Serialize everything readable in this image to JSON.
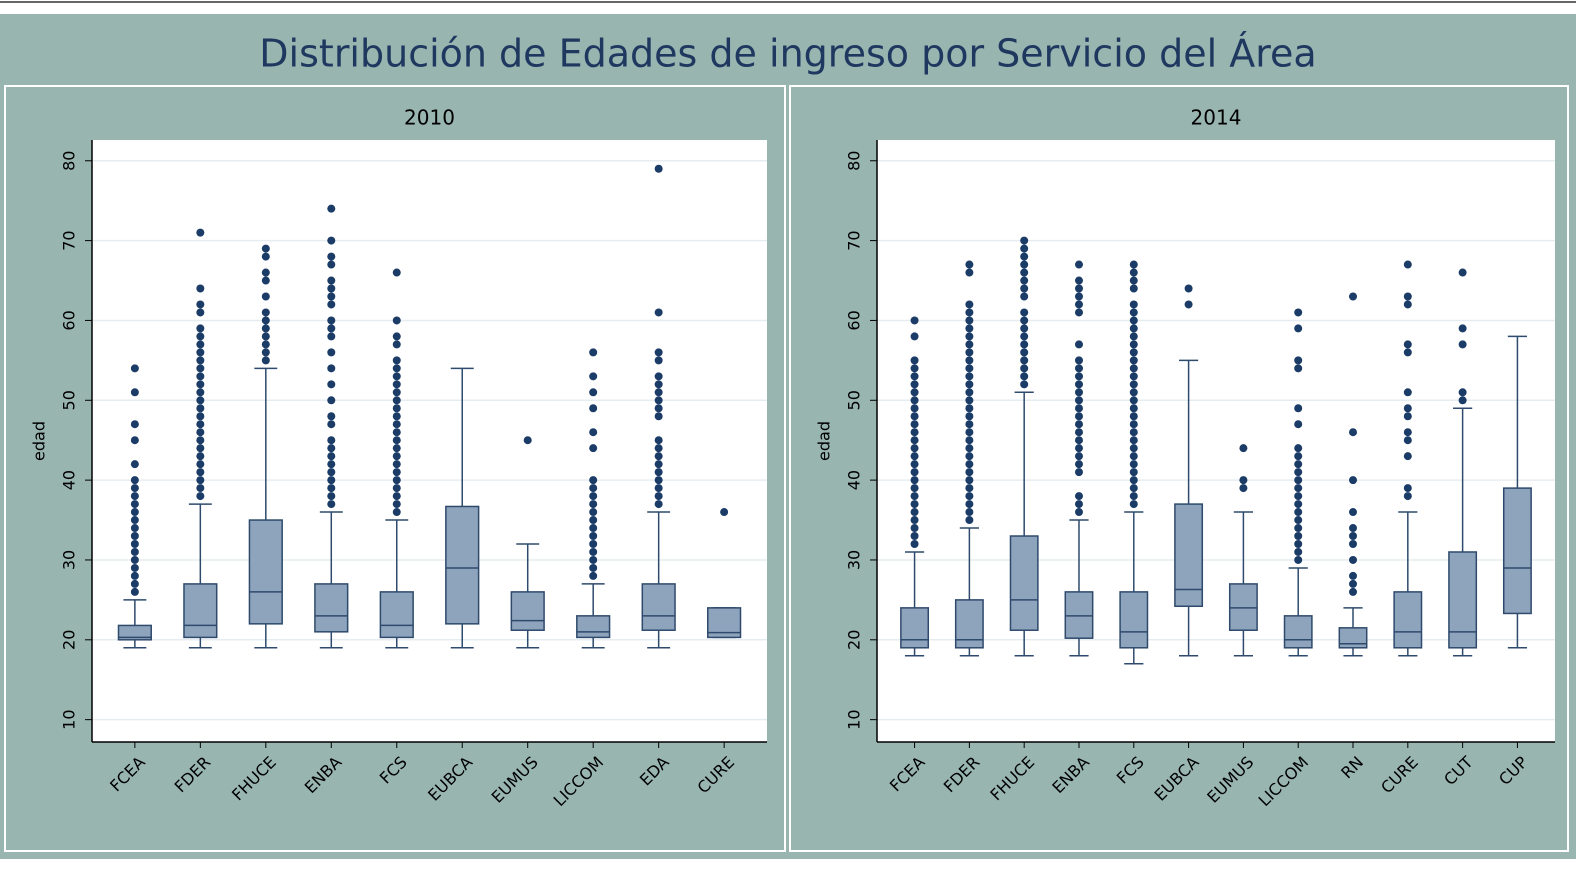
{
  "title": "Distribución de Edades de ingreso por Servicio del Área",
  "chart_data": [
    {
      "type": "box",
      "title": "2010",
      "y_label": "edad",
      "color": "#8ea3bc",
      "ylim": [
        7.2,
        82.6
      ],
      "yticks": [
        10,
        20,
        30,
        40,
        50,
        60,
        70,
        80
      ],
      "grid": true,
      "categories": [
        "FCEA",
        "FDER",
        "FHUCE",
        "ENBA",
        "FCS",
        "EUBCA",
        "EUMUS",
        "LICCOM",
        "EDA",
        "CURE"
      ],
      "boxes": [
        {
          "whislo": 19,
          "q1": 20,
          "med": 20.3,
          "q3": 21.8,
          "whishi": 25,
          "fliers": [
            26,
            27,
            28,
            29,
            30,
            31,
            32,
            33,
            34,
            35,
            36,
            37,
            38,
            39,
            40,
            42,
            45,
            47,
            51,
            54
          ]
        },
        {
          "whislo": 19,
          "q1": 20.3,
          "med": 21.8,
          "q3": 27,
          "whishi": 37,
          "fliers": [
            38,
            39,
            40,
            41,
            42,
            43,
            44,
            45,
            46,
            47,
            48,
            49,
            50,
            51,
            52,
            53,
            54,
            55,
            56,
            57,
            58,
            59,
            61,
            62,
            64,
            71
          ]
        },
        {
          "whislo": 19,
          "q1": 22,
          "med": 26,
          "q3": 35,
          "whishi": 54,
          "fliers": [
            55,
            56,
            57,
            58,
            59,
            60,
            61,
            63,
            65,
            66,
            68,
            69
          ]
        },
        {
          "whislo": 19,
          "q1": 21,
          "med": 23,
          "q3": 27,
          "whishi": 36,
          "fliers": [
            37,
            38,
            39,
            40,
            41,
            42,
            43,
            44,
            45,
            47,
            48,
            50,
            52,
            54,
            56,
            58,
            59,
            60,
            62,
            63,
            64,
            65,
            67,
            68,
            70,
            74
          ]
        },
        {
          "whislo": 19,
          "q1": 20.3,
          "med": 21.8,
          "q3": 26,
          "whishi": 35,
          "fliers": [
            36,
            37,
            38,
            39,
            40,
            41,
            42,
            43,
            44,
            45,
            46,
            47,
            48,
            49,
            50,
            51,
            52,
            53,
            54,
            55,
            57,
            58,
            60,
            66
          ]
        },
        {
          "whislo": 19,
          "q1": 22,
          "med": 29,
          "q3": 36.7,
          "whishi": 54,
          "fliers": []
        },
        {
          "whislo": 19,
          "q1": 21.2,
          "med": 22.4,
          "q3": 26,
          "whishi": 32,
          "fliers": [
            45
          ]
        },
        {
          "whislo": 19,
          "q1": 20.3,
          "med": 21,
          "q3": 23,
          "whishi": 27,
          "fliers": [
            28,
            29,
            30,
            31,
            32,
            33,
            34,
            35,
            36,
            37,
            38,
            39,
            40,
            44,
            46,
            49,
            51,
            53,
            56
          ]
        },
        {
          "whislo": 19,
          "q1": 21.2,
          "med": 23,
          "q3": 27,
          "whishi": 36,
          "fliers": [
            37,
            38,
            39,
            40,
            41,
            42,
            43,
            44,
            45,
            48,
            49,
            50,
            51,
            52,
            53,
            55,
            56,
            61,
            79
          ]
        },
        {
          "whislo": 20.3,
          "q1": 20.3,
          "med": 20.9,
          "q3": 24,
          "whishi": 24,
          "fliers": [
            36
          ]
        }
      ]
    },
    {
      "type": "box",
      "title": "2014",
      "y_label": "edad",
      "color": "#8ea3bc",
      "ylim": [
        7.2,
        82.6
      ],
      "yticks": [
        10,
        20,
        30,
        40,
        50,
        60,
        70,
        80
      ],
      "grid": true,
      "categories": [
        "FCEA",
        "FDER",
        "FHUCE",
        "ENBA",
        "FCS",
        "EUBCA",
        "EUMUS",
        "LICCOM",
        "RN",
        "CURE",
        "CUT",
        "CUP"
      ],
      "boxes": [
        {
          "whislo": 18,
          "q1": 19,
          "med": 20,
          "q3": 24,
          "whishi": 31,
          "fliers": [
            32,
            33,
            34,
            35,
            36,
            37,
            38,
            39,
            40,
            41,
            42,
            43,
            44,
            45,
            46,
            47,
            48,
            49,
            50,
            51,
            52,
            53,
            54,
            55,
            58,
            60
          ]
        },
        {
          "whislo": 18,
          "q1": 19,
          "med": 20,
          "q3": 25,
          "whishi": 34,
          "fliers": [
            35,
            36,
            37,
            38,
            39,
            40,
            41,
            42,
            43,
            44,
            45,
            46,
            47,
            48,
            49,
            50,
            51,
            52,
            53,
            54,
            55,
            56,
            57,
            58,
            59,
            60,
            61,
            62,
            66,
            67
          ]
        },
        {
          "whislo": 18,
          "q1": 21.2,
          "med": 25,
          "q3": 33,
          "whishi": 51,
          "fliers": [
            52,
            53,
            54,
            55,
            56,
            57,
            58,
            59,
            60,
            61,
            63,
            64,
            65,
            66,
            67,
            68,
            69,
            70
          ]
        },
        {
          "whislo": 18,
          "q1": 20.2,
          "med": 23,
          "q3": 26,
          "whishi": 35,
          "fliers": [
            36,
            37,
            38,
            41,
            42,
            43,
            44,
            45,
            46,
            47,
            48,
            49,
            50,
            51,
            52,
            53,
            54,
            55,
            57,
            61,
            62,
            63,
            64,
            65,
            67
          ]
        },
        {
          "whislo": 17,
          "q1": 19,
          "med": 21,
          "q3": 26,
          "whishi": 36,
          "fliers": [
            37,
            38,
            39,
            40,
            41,
            42,
            43,
            44,
            45,
            46,
            47,
            48,
            49,
            50,
            51,
            52,
            53,
            54,
            55,
            56,
            57,
            58,
            59,
            60,
            61,
            62,
            64,
            65,
            66,
            67
          ]
        },
        {
          "whislo": 18,
          "q1": 24.2,
          "med": 26.3,
          "q3": 37,
          "whishi": 55,
          "fliers": [
            62,
            64
          ]
        },
        {
          "whislo": 18,
          "q1": 21.2,
          "med": 24,
          "q3": 27,
          "whishi": 36,
          "fliers": [
            39,
            40,
            44
          ]
        },
        {
          "whislo": 18,
          "q1": 19,
          "med": 20,
          "q3": 23,
          "whishi": 29,
          "fliers": [
            30,
            31,
            32,
            33,
            34,
            35,
            36,
            37,
            38,
            39,
            40,
            41,
            42,
            43,
            44,
            47,
            49,
            54,
            55,
            59,
            61
          ]
        },
        {
          "whislo": 18,
          "q1": 19,
          "med": 19.5,
          "q3": 21.5,
          "whishi": 24,
          "fliers": [
            26,
            27,
            28,
            30,
            32,
            33,
            34,
            36,
            40,
            46,
            63
          ]
        },
        {
          "whislo": 18,
          "q1": 19,
          "med": 21,
          "q3": 26,
          "whishi": 36,
          "fliers": [
            38,
            39,
            43,
            45,
            46,
            48,
            49,
            51,
            56,
            57,
            62,
            63,
            67
          ]
        },
        {
          "whislo": 18,
          "q1": 19,
          "med": 21,
          "q3": 31,
          "whishi": 49,
          "fliers": [
            50,
            51,
            57,
            59,
            66
          ]
        },
        {
          "whislo": 19,
          "q1": 23.3,
          "med": 29,
          "q3": 39,
          "whishi": 58,
          "fliers": []
        }
      ]
    }
  ]
}
